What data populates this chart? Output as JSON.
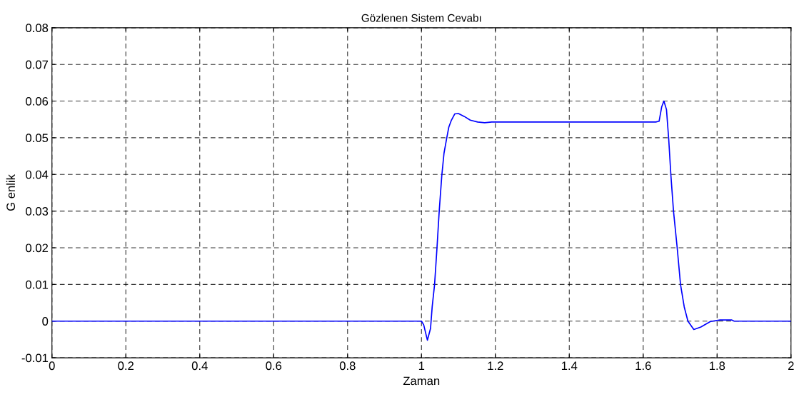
{
  "chart_data": {
    "type": "line",
    "title": "Gözlenen Sistem Cevabı",
    "xlabel": "Zaman",
    "ylabel": "G enlik",
    "x": [
      0,
      1.0,
      1.006,
      1.016,
      1.0245,
      1.029,
      1.0355,
      1.042,
      1.048,
      1.055,
      1.061,
      1.068,
      1.074,
      1.081,
      1.09,
      1.1,
      1.116,
      1.132,
      1.152,
      1.171,
      1.19,
      1.634,
      1.643,
      1.65,
      1.656,
      1.663,
      1.669,
      1.675,
      1.682,
      1.692,
      1.701,
      1.711,
      1.721,
      1.737,
      1.756,
      1.782,
      1.808,
      1.84,
      1.846,
      2.0
    ],
    "series": [
      {
        "color": "#0000ff",
        "values": [
          0,
          0,
          -0.001,
          -0.0052,
          -0.002,
          0.0039,
          0.01,
          0.02,
          0.03,
          0.0397,
          0.0458,
          0.0497,
          0.0529,
          0.0548,
          0.0565,
          0.0566,
          0.0558,
          0.0548,
          0.0543,
          0.0541,
          0.0543,
          0.0543,
          0.0545,
          0.0584,
          0.06,
          0.0577,
          0.0497,
          0.0397,
          0.03,
          0.02,
          0.01,
          0.0039,
          0,
          -0.0023,
          -0.0016,
          -0.0001,
          0.0003,
          0.0003,
          0,
          0
        ]
      }
    ],
    "xlim": [
      0,
      2
    ],
    "xticks": [
      0,
      0.2,
      0.4,
      0.6,
      0.8,
      1,
      1.2,
      1.4,
      1.6,
      1.8,
      2
    ],
    "ylim": [
      -0.01,
      0.08
    ],
    "yticks": [
      -0.01,
      0,
      0.01,
      0.02,
      0.03,
      0.04,
      0.05,
      0.06,
      0.07,
      0.08
    ],
    "grid": true,
    "line_style": "solid"
  }
}
